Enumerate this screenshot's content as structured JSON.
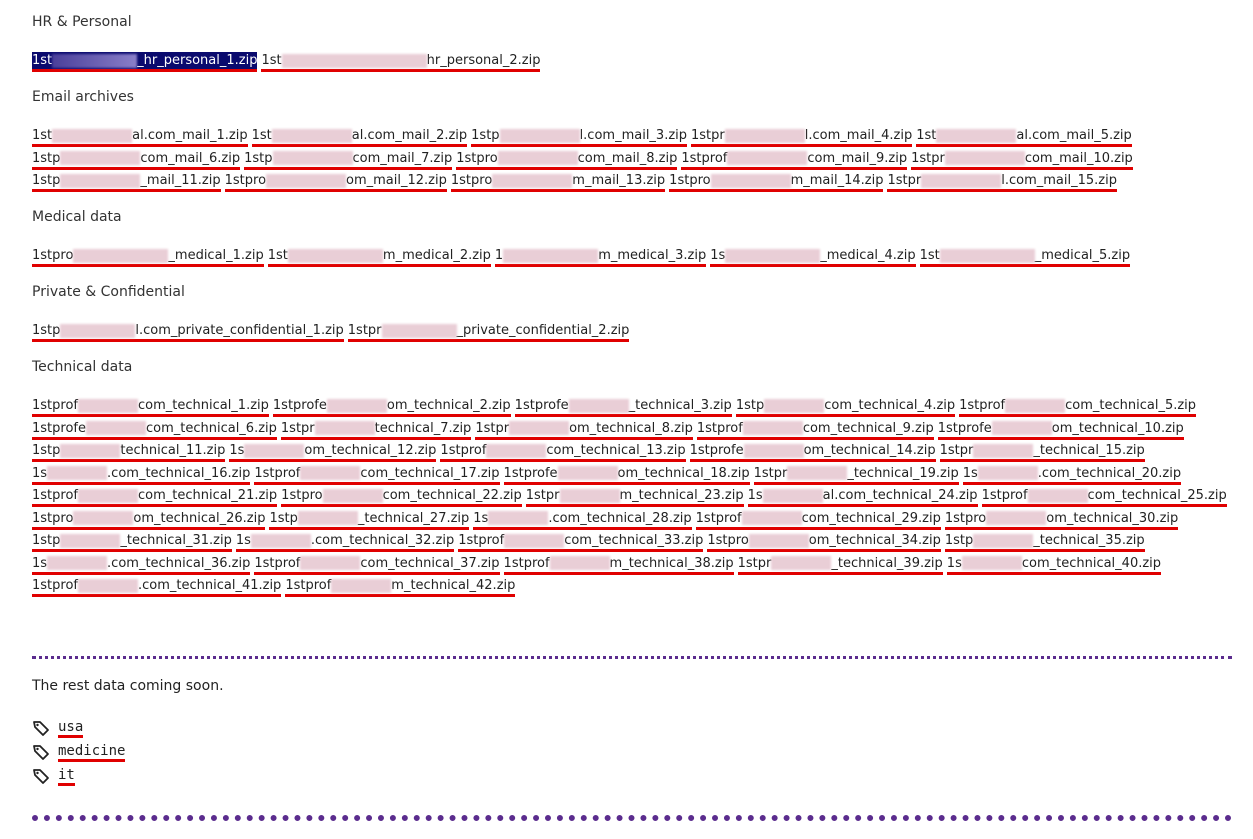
{
  "sections": [
    {
      "title": "HR & Personal",
      "files": [
        {
          "label": "1stp_hr_personal_1.zip",
          "display_prefix": "1st",
          "display_suffix": "_hr_personal_1.zip",
          "selected": true
        },
        {
          "label": "1stp_hr_personal_2.zip",
          "display_prefix": "1st",
          "display_suffix": "hr_personal_2.zip",
          "selected": false
        }
      ]
    },
    {
      "title": "Email archives",
      "files": [
        {
          "display_prefix": "1st",
          "display_suffix": "al.com_mail_1.zip"
        },
        {
          "display_prefix": "1st",
          "display_suffix": "al.com_mail_2.zip"
        },
        {
          "display_prefix": "1stp",
          "display_suffix": "l.com_mail_3.zip"
        },
        {
          "display_prefix": "1stpr",
          "display_suffix": "l.com_mail_4.zip"
        },
        {
          "display_prefix": "1st",
          "display_suffix": "al.com_mail_5.zip"
        },
        {
          "display_prefix": "1stp",
          "display_suffix": "com_mail_6.zip"
        },
        {
          "display_prefix": "1stp",
          "display_suffix": "com_mail_7.zip"
        },
        {
          "display_prefix": "1stpro",
          "display_suffix": "com_mail_8.zip"
        },
        {
          "display_prefix": "1stprof",
          "display_suffix": "com_mail_9.zip"
        },
        {
          "display_prefix": "1stpr",
          "display_suffix": "com_mail_10.zip"
        },
        {
          "display_prefix": "1stp",
          "display_suffix": "_mail_11.zip"
        },
        {
          "display_prefix": "1stpro",
          "display_suffix": "om_mail_12.zip"
        },
        {
          "display_prefix": "1stpro",
          "display_suffix": "m_mail_13.zip"
        },
        {
          "display_prefix": "1stpro",
          "display_suffix": "m_mail_14.zip"
        },
        {
          "display_prefix": "1stpr",
          "display_suffix": "l.com_mail_15.zip"
        }
      ]
    },
    {
      "title": "Medical data",
      "files": [
        {
          "display_prefix": "1stpro",
          "display_suffix": "_medical_1.zip"
        },
        {
          "display_prefix": "1st",
          "display_suffix": "m_medical_2.zip"
        },
        {
          "display_prefix": "1",
          "display_suffix": "m_medical_3.zip"
        },
        {
          "display_prefix": "1s",
          "display_suffix": "_medical_4.zip"
        },
        {
          "display_prefix": "1st",
          "display_suffix": "_medical_5.zip"
        }
      ]
    },
    {
      "title": "Private & Confidential",
      "files": [
        {
          "display_prefix": "1stp",
          "display_suffix": "l.com_private_confidential_1.zip"
        },
        {
          "display_prefix": "1stpr",
          "display_suffix": "_private_confidential_2.zip"
        }
      ]
    },
    {
      "title": "Technical data",
      "files": [
        {
          "display_prefix": "1stprof",
          "display_suffix": "com_technical_1.zip"
        },
        {
          "display_prefix": "1stprofe",
          "display_suffix": "om_technical_2.zip"
        },
        {
          "display_prefix": "1stprofe",
          "display_suffix": "_technical_3.zip"
        },
        {
          "display_prefix": "1stp",
          "display_suffix": "com_technical_4.zip"
        },
        {
          "display_prefix": "1stprof",
          "display_suffix": "com_technical_5.zip"
        },
        {
          "display_prefix": "1stprofe",
          "display_suffix": "com_technical_6.zip"
        },
        {
          "display_prefix": "1stpr",
          "display_suffix": "technical_7.zip"
        },
        {
          "display_prefix": "1stpr",
          "display_suffix": "om_technical_8.zip"
        },
        {
          "display_prefix": "1stprof",
          "display_suffix": "com_technical_9.zip"
        },
        {
          "display_prefix": "1stprofe",
          "display_suffix": "om_technical_10.zip"
        },
        {
          "display_prefix": "1stp",
          "display_suffix": "technical_11.zip"
        },
        {
          "display_prefix": "1s",
          "display_suffix": "om_technical_12.zip"
        },
        {
          "display_prefix": "1stprof",
          "display_suffix": "com_technical_13.zip"
        },
        {
          "display_prefix": "1stprofe",
          "display_suffix": "om_technical_14.zip"
        },
        {
          "display_prefix": "1stpr",
          "display_suffix": "_technical_15.zip"
        },
        {
          "display_prefix": "1s",
          "display_suffix": ".com_technical_16.zip"
        },
        {
          "display_prefix": "1stprof",
          "display_suffix": "com_technical_17.zip"
        },
        {
          "display_prefix": "1stprofe",
          "display_suffix": "om_technical_18.zip"
        },
        {
          "display_prefix": "1stpr",
          "display_suffix": "_technical_19.zip"
        },
        {
          "display_prefix": "1s",
          "display_suffix": ".com_technical_20.zip"
        },
        {
          "display_prefix": "1stprof",
          "display_suffix": "com_technical_21.zip"
        },
        {
          "display_prefix": "1stpro",
          "display_suffix": "com_technical_22.zip"
        },
        {
          "display_prefix": "1stpr",
          "display_suffix": "m_technical_23.zip"
        },
        {
          "display_prefix": "1s",
          "display_suffix": "al.com_technical_24.zip"
        },
        {
          "display_prefix": "1stprof",
          "display_suffix": "com_technical_25.zip"
        },
        {
          "display_prefix": "1stpro",
          "display_suffix": "om_technical_26.zip"
        },
        {
          "display_prefix": "1stp",
          "display_suffix": "_technical_27.zip"
        },
        {
          "display_prefix": "1s",
          "display_suffix": ".com_technical_28.zip"
        },
        {
          "display_prefix": "1stprof",
          "display_suffix": "com_technical_29.zip"
        },
        {
          "display_prefix": "1stpro",
          "display_suffix": "om_technical_30.zip"
        },
        {
          "display_prefix": "1stp",
          "display_suffix": "_technical_31.zip"
        },
        {
          "display_prefix": "1s",
          "display_suffix": ".com_technical_32.zip"
        },
        {
          "display_prefix": "1stprof",
          "display_suffix": "com_technical_33.zip"
        },
        {
          "display_prefix": "1stpro",
          "display_suffix": "om_technical_34.zip"
        },
        {
          "display_prefix": "1stp",
          "display_suffix": "_technical_35.zip"
        },
        {
          "display_prefix": "1s",
          "display_suffix": ".com_technical_36.zip"
        },
        {
          "display_prefix": "1stprof",
          "display_suffix": "com_technical_37.zip"
        },
        {
          "display_prefix": "1stprof",
          "display_suffix": "m_technical_38.zip"
        },
        {
          "display_prefix": "1stpr",
          "display_suffix": "_technical_39.zip"
        },
        {
          "display_prefix": "1s",
          "display_suffix": "com_technical_40.zip"
        },
        {
          "display_prefix": "1stprof",
          "display_suffix": ".com_technical_41.zip"
        },
        {
          "display_prefix": "1stprof",
          "display_suffix": "m_technical_42.zip"
        }
      ]
    }
  ],
  "note": "The rest data coming soon.",
  "tags": [
    "usa",
    "medicine",
    "it"
  ],
  "colors": {
    "link_underline": "#e00000",
    "divider": "#5b2c8e",
    "selection": "#0a0a6e"
  },
  "icons": {
    "tag": "tag-icon"
  }
}
